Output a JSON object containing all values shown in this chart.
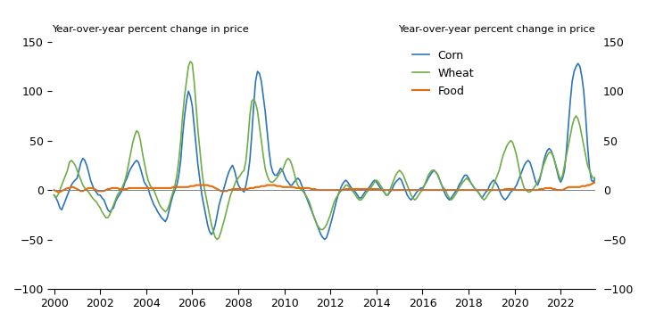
{
  "title_left": "Year-over-year percent change in price",
  "title_right": "Year-over-year percent change in price",
  "ylim": [
    -100,
    150
  ],
  "yticks": [
    -100,
    -50,
    0,
    50,
    100,
    150
  ],
  "xlim_start": 1999.9,
  "xlim_end": 2023.5,
  "xtick_years": [
    2000,
    2002,
    2004,
    2006,
    2008,
    2010,
    2012,
    2014,
    2016,
    2018,
    2020,
    2022
  ],
  "corn_color": "#2E75B6",
  "wheat_color": "#70AD47",
  "food_color": "#E36C09",
  "linewidth_corn": 1.2,
  "linewidth_wheat": 1.2,
  "linewidth_food": 1.5,
  "legend_labels": [
    "Corn",
    "Wheat",
    "Food"
  ],
  "corn": [
    -5,
    -8,
    -12,
    -18,
    -20,
    -15,
    -10,
    -5,
    0,
    5,
    8,
    10,
    12,
    20,
    28,
    32,
    30,
    25,
    18,
    10,
    5,
    0,
    -2,
    -5,
    -5,
    -8,
    -10,
    -15,
    -20,
    -22,
    -20,
    -18,
    -12,
    -8,
    -5,
    -2,
    2,
    8,
    12,
    18,
    22,
    25,
    28,
    30,
    28,
    22,
    15,
    8,
    5,
    2,
    -5,
    -10,
    -15,
    -18,
    -22,
    -25,
    -28,
    -30,
    -32,
    -28,
    -20,
    -12,
    -5,
    0,
    5,
    15,
    30,
    55,
    75,
    90,
    100,
    95,
    85,
    65,
    45,
    25,
    10,
    -5,
    -15,
    -25,
    -35,
    -42,
    -45,
    -42,
    -35,
    -25,
    -15,
    -8,
    -2,
    5,
    12,
    18,
    22,
    25,
    20,
    12,
    5,
    2,
    0,
    -2,
    5,
    15,
    30,
    55,
    85,
    110,
    120,
    118,
    110,
    95,
    80,
    60,
    40,
    25,
    18,
    15,
    15,
    18,
    22,
    20,
    15,
    10,
    8,
    5,
    5,
    8,
    10,
    12,
    10,
    5,
    0,
    -5,
    -10,
    -15,
    -20,
    -25,
    -30,
    -35,
    -40,
    -45,
    -48,
    -50,
    -48,
    -42,
    -35,
    -28,
    -20,
    -12,
    -5,
    0,
    5,
    8,
    10,
    8,
    5,
    2,
    0,
    -2,
    -5,
    -8,
    -8,
    -5,
    -2,
    0,
    2,
    5,
    8,
    10,
    8,
    5,
    2,
    0,
    -2,
    -5,
    -5,
    -2,
    0,
    5,
    8,
    10,
    12,
    10,
    5,
    0,
    -5,
    -8,
    -10,
    -8,
    -5,
    -2,
    0,
    2,
    2,
    5,
    8,
    12,
    15,
    18,
    20,
    18,
    15,
    10,
    5,
    0,
    -5,
    -8,
    -10,
    -8,
    -5,
    -2,
    0,
    5,
    8,
    12,
    15,
    15,
    12,
    8,
    5,
    2,
    0,
    -2,
    -5,
    -8,
    -5,
    -2,
    0,
    5,
    8,
    10,
    8,
    5,
    0,
    -5,
    -8,
    -10,
    -8,
    -5,
    -2,
    0,
    2,
    5,
    10,
    15,
    20,
    25,
    28,
    30,
    28,
    22,
    15,
    8,
    5,
    10,
    18,
    28,
    35,
    40,
    42,
    40,
    35,
    28,
    20,
    12,
    8,
    12,
    20,
    40,
    65,
    90,
    110,
    120,
    125,
    128,
    125,
    115,
    100,
    75,
    45,
    22,
    10,
    8,
    12,
    18,
    30,
    35,
    30,
    20,
    12,
    8,
    5,
    3
  ],
  "wheat": [
    -5,
    -8,
    -5,
    0,
    5,
    10,
    15,
    20,
    28,
    30,
    28,
    25,
    20,
    15,
    10,
    5,
    2,
    0,
    -2,
    -5,
    -8,
    -10,
    -12,
    -15,
    -18,
    -22,
    -25,
    -28,
    -28,
    -25,
    -20,
    -15,
    -10,
    -5,
    -2,
    0,
    5,
    10,
    18,
    28,
    38,
    48,
    55,
    60,
    58,
    50,
    38,
    28,
    18,
    10,
    5,
    2,
    0,
    -5,
    -10,
    -15,
    -18,
    -20,
    -22,
    -20,
    -15,
    -8,
    -2,
    5,
    15,
    30,
    50,
    75,
    95,
    110,
    125,
    130,
    128,
    110,
    85,
    60,
    40,
    20,
    5,
    -5,
    -15,
    -25,
    -35,
    -42,
    -48,
    -50,
    -48,
    -42,
    -35,
    -28,
    -20,
    -12,
    -5,
    0,
    5,
    10,
    12,
    15,
    18,
    20,
    30,
    50,
    75,
    90,
    92,
    88,
    80,
    65,
    50,
    35,
    22,
    15,
    10,
    8,
    8,
    10,
    12,
    15,
    18,
    20,
    25,
    30,
    32,
    30,
    25,
    18,
    10,
    5,
    2,
    0,
    -2,
    -5,
    -8,
    -12,
    -18,
    -25,
    -30,
    -35,
    -38,
    -40,
    -40,
    -38,
    -35,
    -30,
    -25,
    -18,
    -12,
    -8,
    -5,
    -2,
    0,
    2,
    5,
    5,
    2,
    0,
    -2,
    -5,
    -8,
    -10,
    -10,
    -8,
    -5,
    -2,
    0,
    2,
    5,
    8,
    10,
    8,
    5,
    2,
    -2,
    -5,
    -5,
    0,
    5,
    10,
    15,
    18,
    20,
    18,
    15,
    10,
    5,
    0,
    -5,
    -8,
    -10,
    -8,
    -5,
    -2,
    0,
    5,
    10,
    15,
    18,
    20,
    20,
    18,
    15,
    10,
    5,
    2,
    0,
    -5,
    -8,
    -10,
    -8,
    -5,
    -2,
    2,
    5,
    8,
    10,
    12,
    10,
    8,
    5,
    2,
    0,
    -2,
    -5,
    -8,
    -10,
    -8,
    -5,
    -2,
    0,
    5,
    10,
    15,
    20,
    28,
    35,
    40,
    45,
    48,
    50,
    48,
    42,
    35,
    25,
    15,
    8,
    2,
    0,
    -2,
    -2,
    0,
    2,
    5,
    8,
    12,
    18,
    25,
    30,
    35,
    38,
    38,
    35,
    28,
    22,
    15,
    10,
    15,
    25,
    35,
    45,
    55,
    65,
    72,
    75,
    72,
    65,
    55,
    45,
    35,
    25,
    20,
    15,
    12,
    12,
    15,
    20,
    25,
    28,
    30,
    25,
    18,
    12,
    8
  ],
  "food": [
    0,
    -1,
    -2,
    -2,
    -1,
    0,
    1,
    2,
    2,
    3,
    3,
    2,
    1,
    0,
    -1,
    -1,
    0,
    1,
    2,
    2,
    2,
    1,
    0,
    -1,
    -1,
    -1,
    -1,
    0,
    1,
    1,
    2,
    2,
    2,
    2,
    1,
    1,
    1,
    1,
    1,
    2,
    2,
    2,
    2,
    2,
    2,
    2,
    2,
    2,
    2,
    2,
    2,
    2,
    2,
    2,
    2,
    2,
    2,
    2,
    2,
    2,
    2,
    2,
    3,
    3,
    3,
    3,
    3,
    3,
    3,
    3,
    3,
    4,
    4,
    4,
    5,
    5,
    5,
    5,
    5,
    5,
    5,
    4,
    4,
    3,
    2,
    1,
    0,
    -1,
    -1,
    -1,
    -1,
    0,
    0,
    1,
    1,
    1,
    1,
    1,
    1,
    1,
    1,
    1,
    2,
    2,
    2,
    3,
    3,
    3,
    4,
    4,
    4,
    5,
    5,
    5,
    5,
    5,
    4,
    4,
    4,
    3,
    3,
    3,
    3,
    3,
    3,
    3,
    2,
    2,
    2,
    2,
    2,
    2,
    2,
    2,
    1,
    1,
    1,
    0,
    0,
    0,
    0,
    0,
    0,
    0,
    0,
    0,
    0,
    0,
    0,
    0,
    0,
    0,
    1,
    1,
    1,
    1,
    1,
    1,
    1,
    1,
    1,
    1,
    1,
    1,
    1,
    1,
    1,
    1,
    1,
    1,
    0,
    0,
    0,
    0,
    0,
    0,
    0,
    0,
    0,
    0,
    0,
    0,
    0,
    0,
    0,
    0,
    0,
    0,
    0,
    0,
    0,
    0,
    0,
    0,
    0,
    0,
    0,
    0,
    0,
    0,
    0,
    0,
    0,
    0,
    0,
    0,
    0,
    0,
    0,
    0,
    0,
    0,
    0,
    0,
    0,
    0,
    0,
    0,
    0,
    0,
    0,
    0,
    0,
    0,
    0,
    0,
    0,
    0,
    0,
    0,
    0,
    0,
    0,
    0,
    0,
    1,
    1,
    1,
    1,
    1,
    1,
    0,
    0,
    0,
    0,
    0,
    0,
    0,
    0,
    0,
    0,
    0,
    0,
    1,
    1,
    1,
    2,
    2,
    2,
    2,
    1,
    1,
    0,
    0,
    0,
    0,
    1,
    2,
    3,
    3,
    3,
    3,
    3,
    3,
    3,
    4,
    4,
    4,
    5,
    5,
    6,
    7,
    8,
    9,
    9,
    9,
    8,
    7,
    6,
    5,
    4,
    3
  ]
}
